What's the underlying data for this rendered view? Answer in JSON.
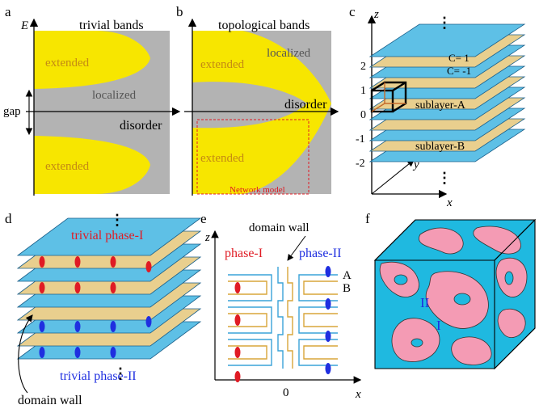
{
  "figure": {
    "panel_labels": {
      "a": "a",
      "b": "b",
      "c": "c",
      "d": "d",
      "e": "e",
      "f": "f"
    },
    "panel_a": {
      "axis_y": "E",
      "title": "trivial bands",
      "extended_top": "extended",
      "extended_bottom": "extended",
      "localized": "localized",
      "gap": "gap",
      "disorder": "disorder"
    },
    "panel_b": {
      "title": "topological bands",
      "extended_top": "extended",
      "extended_bottom": "extended",
      "localized": "localized",
      "disorder": "disorder",
      "network_model": "Network model"
    },
    "panel_c": {
      "axis_z": "z",
      "axis_y": "y",
      "axis_x": "x",
      "chern_pos": "C= 1",
      "chern_neg": "C= -1",
      "sublayer_a": "sublayer-A",
      "sublayer_b": "sublayer-B",
      "ticks": [
        "2",
        "1",
        "0",
        "-1",
        "-2"
      ],
      "dots_top": "⋮",
      "dots_bottom": "⋮"
    },
    "panel_d": {
      "phase_one": "trivial phase-I",
      "phase_two": "trivial phase-II",
      "domain_wall": "domain wall",
      "dots_top": "⋮",
      "dots_mid": "⋮"
    },
    "panel_e": {
      "axis_z": "z",
      "axis_x": "x",
      "zero": "0",
      "domain_wall": "domain wall",
      "phase_one": "phase-I",
      "phase_two": "phase-II",
      "label_a": "A",
      "label_b": "B"
    },
    "panel_f": {
      "region_two": "II",
      "region_one": "I"
    },
    "colors": {
      "yellow": "#f7e600",
      "gray": "#b3b3b3",
      "blue_layer": "#5ec0e6",
      "tan_layer": "#e9cf8e",
      "red": "#e01b24",
      "blue": "#1f2fe0",
      "pink": "#f49bb4",
      "cyan": "#1fb9e0"
    }
  }
}
